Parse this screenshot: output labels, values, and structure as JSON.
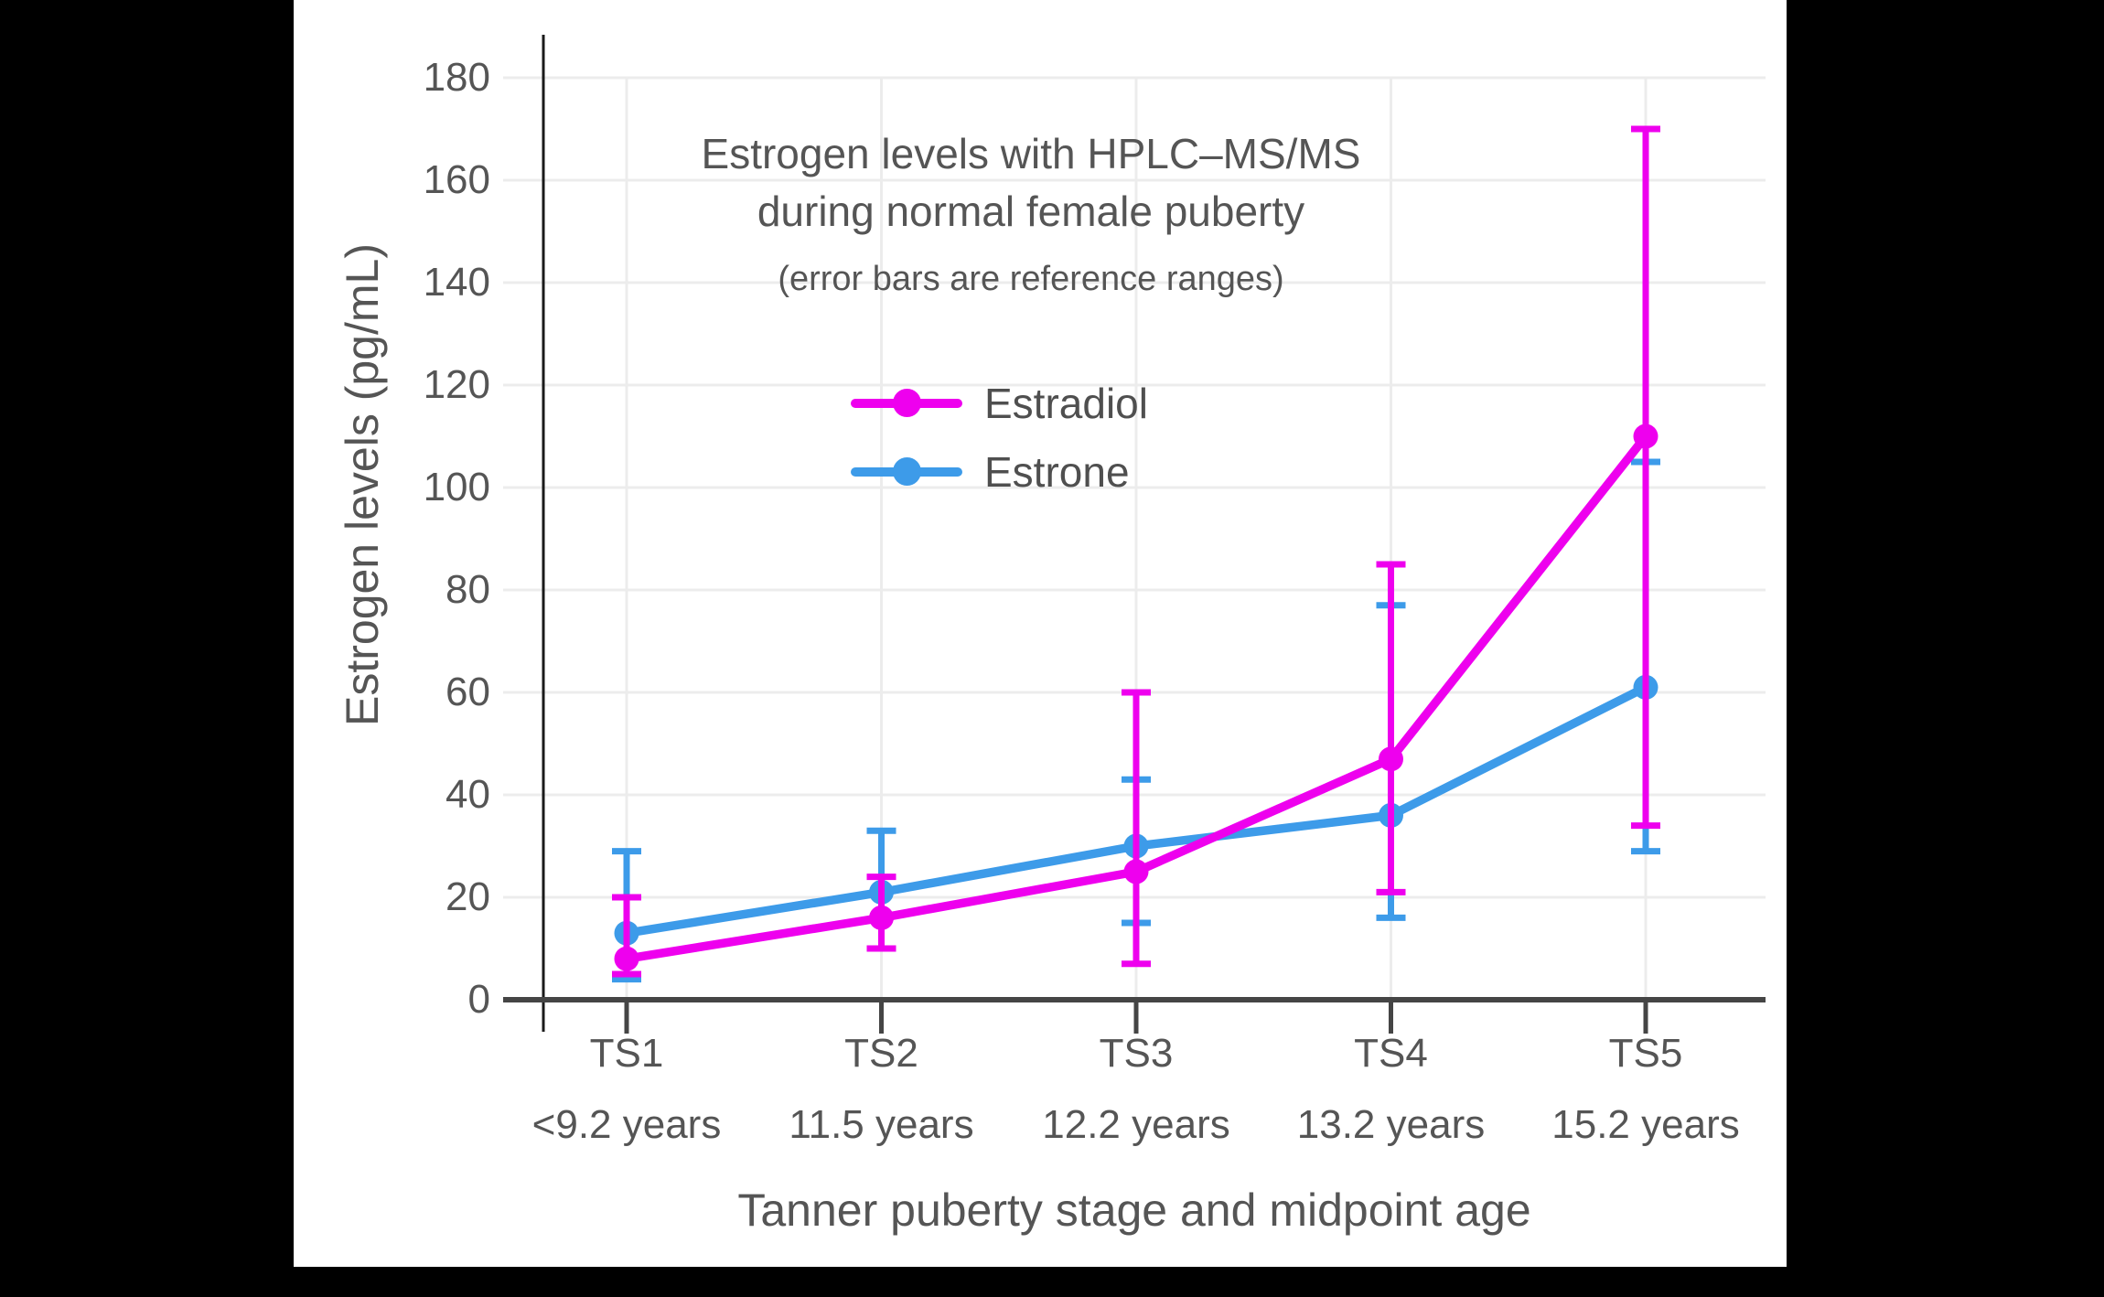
{
  "page": {
    "background": "#000000",
    "canvas_background": "#ffffff"
  },
  "chart_data": {
    "type": "line",
    "title_line1": "Estrogen levels with HPLC–MS/MS",
    "title_line2": "during normal female puberty",
    "subtitle": "(error bars are reference ranges)",
    "xlabel": "Tanner puberty stage and midpoint age",
    "ylabel": "Estrogen levels (pg/mL)",
    "ylim": [
      0,
      180
    ],
    "ytick_step": 20,
    "yticks": [
      "0",
      "20",
      "40",
      "60",
      "80",
      "100",
      "120",
      "140",
      "160",
      "180"
    ],
    "grid": true,
    "legend_position": "inside-top-center",
    "categories": [
      "TS1",
      "TS2",
      "TS3",
      "TS4",
      "TS5"
    ],
    "category_ages": [
      "<9.2 years",
      "11.5 years",
      "12.2 years",
      "13.2 years",
      "15.2 years"
    ],
    "series": [
      {
        "name": "Estradiol",
        "color": "#EE00EE",
        "marker": "circle",
        "values": [
          8,
          16,
          25,
          47,
          110
        ],
        "err_low": [
          5,
          10,
          7,
          21,
          34
        ],
        "err_high": [
          20,
          24,
          60,
          85,
          170
        ]
      },
      {
        "name": "Estrone",
        "color": "#3D9BE9",
        "marker": "circle",
        "values": [
          13,
          21,
          30,
          36,
          61
        ],
        "err_low": [
          4,
          10,
          15,
          16,
          29
        ],
        "err_high": [
          29,
          33,
          43,
          77,
          105
        ]
      }
    ],
    "colors": {
      "grid": "#ececec",
      "axis_line": "#1a1a1a",
      "baseline": "#454545",
      "text": "#555555"
    }
  }
}
